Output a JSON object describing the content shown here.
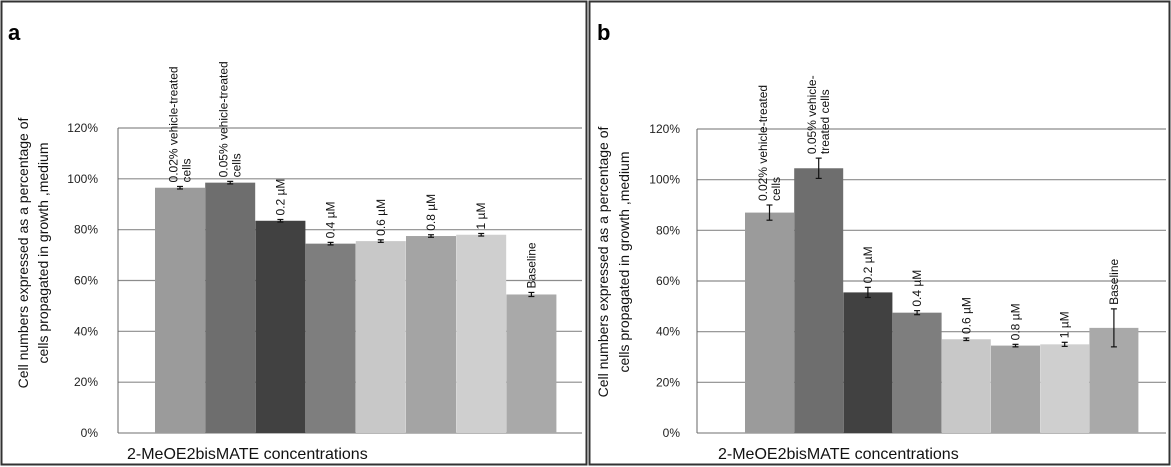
{
  "chart_data": [
    {
      "panel_label": "a",
      "type": "bar",
      "xlabel": "2-MeOE2bisMATE concentrations",
      "ylabel_lines": [
        "Cell numbers expressed as a percentage of",
        "cells propagated in growth ,medium"
      ],
      "ylim": [
        0,
        120
      ],
      "yticks": [
        "0%",
        "20%",
        "40%",
        "60%",
        "80%",
        "100%",
        "120%"
      ],
      "grid": true,
      "categories": [
        [
          "0.02% vehicle-treated",
          "cells"
        ],
        [
          "0.05% vehicle-treated",
          "cells"
        ],
        [
          "0.2 µM"
        ],
        [
          "0.4 µM"
        ],
        [
          "0.6 µM"
        ],
        [
          "0.8 µM"
        ],
        [
          "1 µM"
        ],
        [
          "Baseline"
        ]
      ],
      "values": [
        96.5,
        98.5,
        83.5,
        74.5,
        75.5,
        77.5,
        78,
        54.5
      ],
      "errors": [
        0.5,
        0.5,
        0.5,
        0.5,
        0.5,
        0.5,
        0.5,
        0.8
      ],
      "colors": [
        "#9b9b9b",
        "#6e6e6e",
        "#414141",
        "#7e7e7e",
        "#c8c8c8",
        "#a4a4a4",
        "#cfcfcf",
        "#a9a9a9"
      ]
    },
    {
      "panel_label": "b",
      "type": "bar",
      "xlabel": "2-MeOE2bisMATE concentrations",
      "ylabel_lines": [
        "Cell numbers expressed as a percentage of",
        "cells  propagated in growth ,medium"
      ],
      "ylim": [
        0,
        120
      ],
      "yticks": [
        "0%",
        "20%",
        "40%",
        "60%",
        "80%",
        "100%",
        "120%"
      ],
      "grid": true,
      "categories": [
        [
          "0.02% vehicle-treated",
          "cells"
        ],
        [
          "0.05% vehicle-",
          "treated cells"
        ],
        [
          "0.2 µM"
        ],
        [
          "0.4 µM"
        ],
        [
          "0.6 µM"
        ],
        [
          "0.8 µM"
        ],
        [
          "1 µM"
        ],
        [
          "Baseline"
        ]
      ],
      "values": [
        87,
        104.5,
        55.5,
        47.5,
        37,
        34.5,
        35,
        41.5
      ],
      "errors": [
        3,
        4,
        2,
        0.8,
        0.5,
        0.5,
        0.8,
        7.5
      ],
      "colors": [
        "#9b9b9b",
        "#6e6e6e",
        "#414141",
        "#7e7e7e",
        "#c8c8c8",
        "#a4a4a4",
        "#cfcfcf",
        "#a9a9a9"
      ]
    }
  ]
}
